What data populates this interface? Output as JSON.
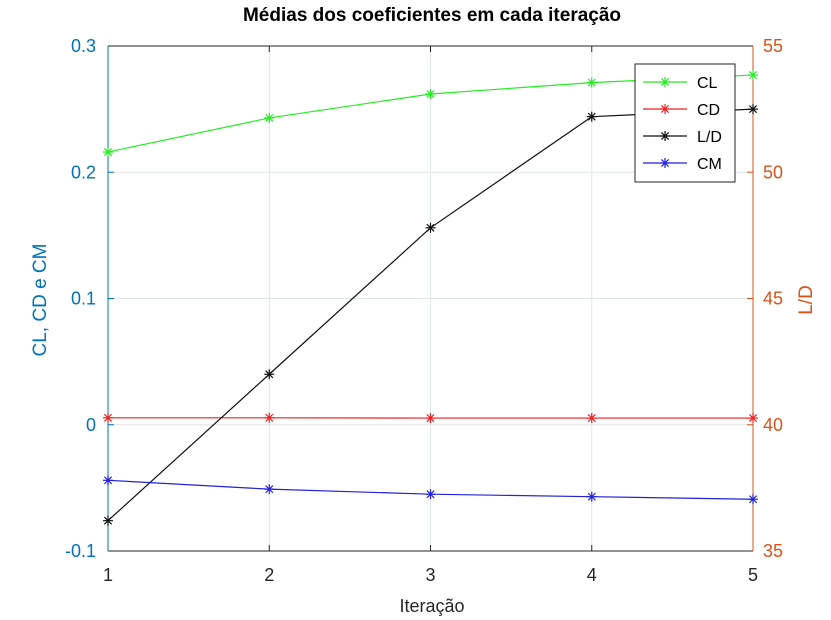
{
  "chart_data": {
    "type": "line",
    "title": "Médias dos coeficientes em cada iteração",
    "xlabel": "Iteração",
    "ylabel_left": "CL, CD e CM",
    "ylabel_right": "L/D",
    "x": [
      1,
      2,
      3,
      4,
      5
    ],
    "xlim": [
      1,
      5
    ],
    "ylim_left": [
      -0.1,
      0.3
    ],
    "ylim_right": [
      35,
      55
    ],
    "x_ticks": [
      "1",
      "2",
      "3",
      "4",
      "5"
    ],
    "y_left_ticks": [
      "-0.1",
      "0",
      "0.1",
      "0.2",
      "0.3"
    ],
    "y_right_ticks": [
      "35",
      "40",
      "45",
      "50",
      "55"
    ],
    "grid": true,
    "legend_position": "top-right",
    "colors": {
      "left_axis": "#0072BD",
      "right_axis": "#D95319"
    },
    "series": [
      {
        "name": "CL",
        "axis": "left",
        "color": "#22ee22",
        "values": [
          0.216,
          0.243,
          0.262,
          0.271,
          0.277
        ]
      },
      {
        "name": "CD",
        "axis": "left",
        "color": "#ee2222",
        "values": [
          0.0055,
          0.0055,
          0.0053,
          0.0053,
          0.0053
        ]
      },
      {
        "name": "L/D",
        "axis": "right",
        "color": "#111111",
        "values": [
          36.2,
          42.0,
          47.8,
          52.2,
          52.5
        ]
      },
      {
        "name": "CM",
        "axis": "left",
        "color": "#2222dd",
        "values": [
          -0.044,
          -0.051,
          -0.055,
          -0.057,
          -0.059
        ]
      }
    ]
  }
}
